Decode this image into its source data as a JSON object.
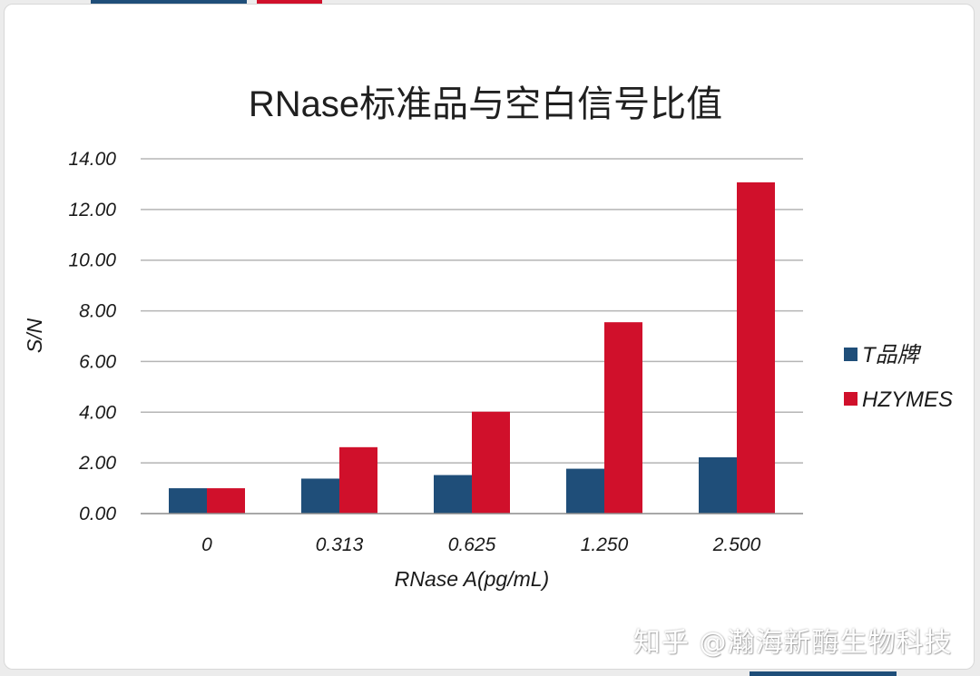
{
  "watermark": "知乎 @瀚海新酶生物科技",
  "colors": {
    "series_1": "#1f4e79",
    "series_2": "#d0102b",
    "grid": "#b5b5b5"
  },
  "chart_data": {
    "type": "bar",
    "title": "RNase标准品与空白信号比值",
    "xlabel": "RNase A(pg/mL)",
    "ylabel": "S/N",
    "categories": [
      "0",
      "0.313",
      "0.625",
      "1.250",
      "2.500"
    ],
    "series": [
      {
        "name": "T品牌",
        "values": [
          1.0,
          1.38,
          1.52,
          1.77,
          2.22
        ]
      },
      {
        "name": "HZYMES",
        "values": [
          1.0,
          2.62,
          4.02,
          7.55,
          13.07
        ]
      }
    ],
    "ylim": [
      0,
      14
    ],
    "yticks": [
      "0.00",
      "2.00",
      "4.00",
      "6.00",
      "8.00",
      "10.00",
      "12.00",
      "14.00"
    ],
    "grid": true,
    "legend": "right"
  }
}
